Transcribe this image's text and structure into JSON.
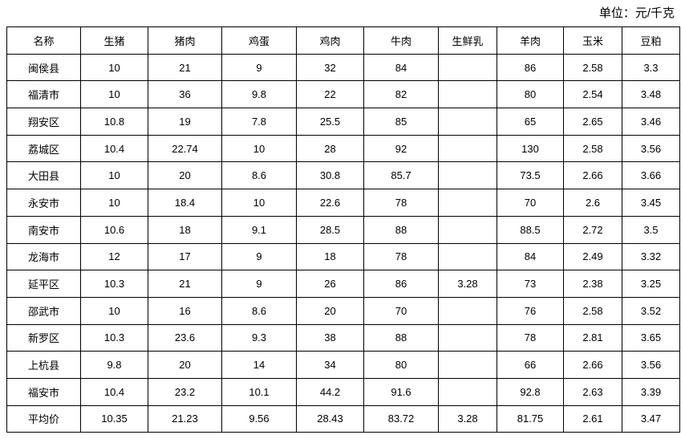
{
  "unit_label": "单位：元/千克",
  "table": {
    "headers": [
      "名称",
      "生猪",
      "猪肉",
      "鸡蛋",
      "鸡肉",
      "牛肉",
      "生鲜乳",
      "羊肉",
      "玉米",
      "豆粕"
    ],
    "rows": [
      [
        "闽侯县",
        "10",
        "21",
        "9",
        "32",
        "84",
        "",
        "86",
        "2.58",
        "3.3"
      ],
      [
        "福清市",
        "10",
        "36",
        "9.8",
        "22",
        "82",
        "",
        "80",
        "2.54",
        "3.48"
      ],
      [
        "翔安区",
        "10.8",
        "19",
        "7.8",
        "25.5",
        "85",
        "",
        "65",
        "2.65",
        "3.46"
      ],
      [
        "荔城区",
        "10.4",
        "22.74",
        "10",
        "28",
        "92",
        "",
        "130",
        "2.58",
        "3.56"
      ],
      [
        "大田县",
        "10",
        "20",
        "8.6",
        "30.8",
        "85.7",
        "",
        "73.5",
        "2.66",
        "3.66"
      ],
      [
        "永安市",
        "10",
        "18.4",
        "10",
        "22.6",
        "78",
        "",
        "70",
        "2.6",
        "3.45"
      ],
      [
        "南安市",
        "10.6",
        "18",
        "9.1",
        "28.5",
        "88",
        "",
        "88.5",
        "2.72",
        "3.5"
      ],
      [
        "龙海市",
        "12",
        "17",
        "9",
        "18",
        "78",
        "",
        "84",
        "2.49",
        "3.32"
      ],
      [
        "延平区",
        "10.3",
        "21",
        "9",
        "26",
        "86",
        "3.28",
        "73",
        "2.38",
        "3.25"
      ],
      [
        "邵武市",
        "10",
        "16",
        "8.6",
        "20",
        "70",
        "",
        "76",
        "2.58",
        "3.52"
      ],
      [
        "新罗区",
        "10.3",
        "23.6",
        "9.3",
        "38",
        "88",
        "",
        "78",
        "2.81",
        "3.65"
      ],
      [
        "上杭县",
        "9.8",
        "20",
        "14",
        "34",
        "80",
        "",
        "66",
        "2.66",
        "3.56"
      ],
      [
        "福安市",
        "10.4",
        "23.2",
        "10.1",
        "44.2",
        "91.6",
        "",
        "92.8",
        "2.63",
        "3.39"
      ],
      [
        "平均价",
        "10.35",
        "21.23",
        "9.56",
        "28.43",
        "83.72",
        "3.28",
        "81.75",
        "2.61",
        "3.47"
      ]
    ]
  }
}
